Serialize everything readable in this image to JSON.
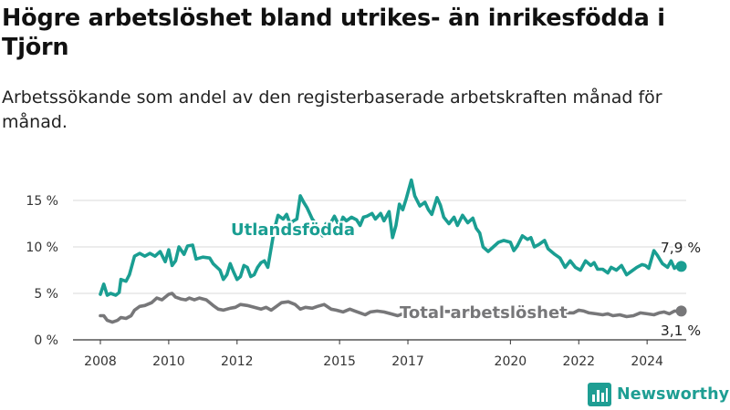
{
  "title": "Högre arbetslöshet bland utrikes- än inrikesfödda i Tjörn",
  "subtitle": "Arbetssökande som andel av den registerbaserade arbetskraften månad för månad.",
  "brand": {
    "name": "Newsworthy",
    "icon": "bar-chart-logo-icon",
    "color": "#1e9e93"
  },
  "colors": {
    "foreign": "#1a9e92",
    "total": "#777779",
    "grid": "#d9d9d9",
    "axis": "#333333"
  },
  "chart_data": {
    "type": "line",
    "ylim": [
      0,
      17.5
    ],
    "xlim": [
      2007.7,
      2025.2
    ],
    "y_ticks": [
      0,
      5,
      10,
      15
    ],
    "y_tick_labels": [
      "0 %",
      "5 %",
      "10 %",
      "15 %"
    ],
    "x_ticks": [
      2008,
      2010,
      2012,
      2015,
      2017,
      2020,
      2022,
      2024
    ],
    "x_tick_labels": [
      "2008",
      "2010",
      "2012",
      "2015",
      "2017",
      "2020",
      "2022",
      "2024"
    ],
    "grid": true,
    "series": [
      {
        "name": "Utlandsfödda",
        "end_label": "7,9 %",
        "points": [
          [
            2008.0,
            4.9
          ],
          [
            2008.1,
            6.0
          ],
          [
            2008.2,
            4.8
          ],
          [
            2008.3,
            5.0
          ],
          [
            2008.45,
            4.8
          ],
          [
            2008.55,
            5.1
          ],
          [
            2008.6,
            6.5
          ],
          [
            2008.75,
            6.3
          ],
          [
            2008.85,
            7.0
          ],
          [
            2009.0,
            9.0
          ],
          [
            2009.15,
            9.3
          ],
          [
            2009.3,
            9.0
          ],
          [
            2009.45,
            9.3
          ],
          [
            2009.6,
            9.0
          ],
          [
            2009.75,
            9.5
          ],
          [
            2009.9,
            8.4
          ],
          [
            2010.0,
            9.7
          ],
          [
            2010.1,
            8.0
          ],
          [
            2010.2,
            8.5
          ],
          [
            2010.3,
            10.0
          ],
          [
            2010.45,
            9.2
          ],
          [
            2010.55,
            10.1
          ],
          [
            2010.7,
            10.2
          ],
          [
            2010.8,
            8.7
          ],
          [
            2011.0,
            8.9
          ],
          [
            2011.2,
            8.8
          ],
          [
            2011.3,
            8.2
          ],
          [
            2011.5,
            7.5
          ],
          [
            2011.6,
            6.5
          ],
          [
            2011.7,
            7.0
          ],
          [
            2011.8,
            8.2
          ],
          [
            2011.9,
            7.3
          ],
          [
            2012.0,
            6.5
          ],
          [
            2012.1,
            6.8
          ],
          [
            2012.2,
            8.0
          ],
          [
            2012.3,
            7.8
          ],
          [
            2012.4,
            6.8
          ],
          [
            2012.5,
            7.0
          ],
          [
            2012.6,
            7.8
          ],
          [
            2012.7,
            8.3
          ],
          [
            2012.8,
            8.5
          ],
          [
            2012.9,
            7.8
          ],
          [
            2013.05,
            11.0
          ],
          [
            2013.1,
            12.0
          ],
          [
            2013.2,
            13.4
          ],
          [
            2013.35,
            13.0
          ],
          [
            2013.45,
            13.5
          ],
          [
            2013.55,
            12.5
          ],
          [
            2013.65,
            12.8
          ],
          [
            2013.75,
            13.0
          ],
          [
            2013.85,
            15.5
          ],
          [
            2013.95,
            14.8
          ],
          [
            2014.05,
            14.2
          ],
          [
            2014.2,
            13.0
          ],
          [
            2014.35,
            12.3
          ],
          [
            2014.5,
            11.2
          ],
          [
            2014.6,
            12.5
          ],
          [
            2014.7,
            12.3
          ],
          [
            2014.85,
            13.3
          ],
          [
            2015.0,
            12.2
          ],
          [
            2015.1,
            13.2
          ],
          [
            2015.2,
            12.8
          ],
          [
            2015.35,
            13.2
          ],
          [
            2015.5,
            12.9
          ],
          [
            2015.6,
            12.3
          ],
          [
            2015.7,
            13.2
          ],
          [
            2015.8,
            13.3
          ],
          [
            2015.95,
            13.6
          ],
          [
            2016.05,
            13.0
          ],
          [
            2016.2,
            13.6
          ],
          [
            2016.3,
            12.8
          ],
          [
            2016.45,
            13.8
          ],
          [
            2016.55,
            11.0
          ],
          [
            2016.65,
            12.3
          ],
          [
            2016.75,
            14.6
          ],
          [
            2016.85,
            14.0
          ],
          [
            2016.95,
            15.2
          ],
          [
            2017.1,
            17.2
          ],
          [
            2017.2,
            15.5
          ],
          [
            2017.35,
            14.4
          ],
          [
            2017.5,
            14.8
          ],
          [
            2017.6,
            14.0
          ],
          [
            2017.7,
            13.5
          ],
          [
            2017.85,
            15.3
          ],
          [
            2017.95,
            14.5
          ],
          [
            2018.05,
            13.2
          ],
          [
            2018.2,
            12.5
          ],
          [
            2018.35,
            13.2
          ],
          [
            2018.45,
            12.3
          ],
          [
            2018.6,
            13.4
          ],
          [
            2018.75,
            12.6
          ],
          [
            2018.9,
            13.1
          ],
          [
            2019.0,
            12.0
          ],
          [
            2019.1,
            11.5
          ],
          [
            2019.2,
            10.0
          ],
          [
            2019.35,
            9.5
          ],
          [
            2019.5,
            10.0
          ],
          [
            2019.65,
            10.5
          ],
          [
            2019.8,
            10.7
          ],
          [
            2020.0,
            10.5
          ],
          [
            2020.1,
            9.6
          ],
          [
            2020.2,
            10.1
          ],
          [
            2020.35,
            11.2
          ],
          [
            2020.5,
            10.8
          ],
          [
            2020.6,
            11.0
          ],
          [
            2020.7,
            10.0
          ],
          [
            2020.85,
            10.3
          ],
          [
            2021.0,
            10.7
          ],
          [
            2021.1,
            9.8
          ],
          [
            2021.2,
            9.5
          ],
          [
            2021.3,
            9.2
          ],
          [
            2021.45,
            8.8
          ],
          [
            2021.6,
            7.8
          ],
          [
            2021.75,
            8.5
          ],
          [
            2021.9,
            7.8
          ],
          [
            2022.05,
            7.5
          ],
          [
            2022.2,
            8.5
          ],
          [
            2022.35,
            8.0
          ],
          [
            2022.45,
            8.3
          ],
          [
            2022.55,
            7.6
          ],
          [
            2022.7,
            7.6
          ],
          [
            2022.85,
            7.2
          ],
          [
            2022.95,
            7.8
          ],
          [
            2023.1,
            7.5
          ],
          [
            2023.25,
            8.0
          ],
          [
            2023.4,
            7.0
          ],
          [
            2023.55,
            7.4
          ],
          [
            2023.7,
            7.8
          ],
          [
            2023.85,
            8.1
          ],
          [
            2023.95,
            8.0
          ],
          [
            2024.05,
            7.7
          ],
          [
            2024.2,
            9.6
          ],
          [
            2024.3,
            9.1
          ],
          [
            2024.45,
            8.2
          ],
          [
            2024.6,
            7.8
          ],
          [
            2024.7,
            8.5
          ],
          [
            2024.8,
            7.7
          ],
          [
            2024.9,
            8.0
          ],
          [
            2025.0,
            7.9
          ]
        ]
      },
      {
        "name": "Total arbetslöshet",
        "end_label": "3,1 %",
        "points": [
          [
            2008.0,
            2.6
          ],
          [
            2008.1,
            2.6
          ],
          [
            2008.2,
            2.1
          ],
          [
            2008.35,
            1.9
          ],
          [
            2008.5,
            2.1
          ],
          [
            2008.6,
            2.4
          ],
          [
            2008.75,
            2.3
          ],
          [
            2008.9,
            2.6
          ],
          [
            2009.0,
            3.2
          ],
          [
            2009.15,
            3.6
          ],
          [
            2009.3,
            3.7
          ],
          [
            2009.5,
            4.0
          ],
          [
            2009.65,
            4.5
          ],
          [
            2009.8,
            4.3
          ],
          [
            2010.0,
            4.9
          ],
          [
            2010.1,
            5.0
          ],
          [
            2010.2,
            4.6
          ],
          [
            2010.35,
            4.4
          ],
          [
            2010.5,
            4.3
          ],
          [
            2010.6,
            4.5
          ],
          [
            2010.75,
            4.3
          ],
          [
            2010.9,
            4.5
          ],
          [
            2011.1,
            4.3
          ],
          [
            2011.3,
            3.7
          ],
          [
            2011.45,
            3.3
          ],
          [
            2011.6,
            3.2
          ],
          [
            2011.8,
            3.4
          ],
          [
            2011.95,
            3.5
          ],
          [
            2012.1,
            3.8
          ],
          [
            2012.3,
            3.7
          ],
          [
            2012.5,
            3.5
          ],
          [
            2012.7,
            3.3
          ],
          [
            2012.85,
            3.5
          ],
          [
            2013.0,
            3.2
          ],
          [
            2013.15,
            3.6
          ],
          [
            2013.3,
            4.0
          ],
          [
            2013.5,
            4.1
          ],
          [
            2013.7,
            3.8
          ],
          [
            2013.85,
            3.3
          ],
          [
            2014.0,
            3.5
          ],
          [
            2014.2,
            3.4
          ],
          [
            2014.35,
            3.6
          ],
          [
            2014.55,
            3.8
          ],
          [
            2014.75,
            3.3
          ],
          [
            2014.9,
            3.2
          ],
          [
            2015.1,
            3.0
          ],
          [
            2015.3,
            3.3
          ],
          [
            2015.45,
            3.1
          ],
          [
            2015.6,
            2.9
          ],
          [
            2015.75,
            2.7
          ],
          [
            2015.9,
            3.0
          ],
          [
            2016.1,
            3.1
          ],
          [
            2016.3,
            3.0
          ],
          [
            2016.5,
            2.8
          ],
          [
            2016.7,
            2.6
          ],
          [
            2016.85,
            2.8
          ],
          [
            2017.0,
            3.1
          ],
          [
            2021.85,
            2.9
          ],
          [
            2022.0,
            3.2
          ],
          [
            2022.15,
            3.1
          ],
          [
            2022.3,
            2.9
          ],
          [
            2022.5,
            2.8
          ],
          [
            2022.7,
            2.7
          ],
          [
            2022.85,
            2.8
          ],
          [
            2023.0,
            2.6
          ],
          [
            2023.2,
            2.7
          ],
          [
            2023.4,
            2.5
          ],
          [
            2023.6,
            2.6
          ],
          [
            2023.8,
            2.9
          ],
          [
            2024.0,
            2.8
          ],
          [
            2024.2,
            2.7
          ],
          [
            2024.35,
            2.9
          ],
          [
            2024.5,
            3.0
          ],
          [
            2024.65,
            2.8
          ],
          [
            2024.8,
            3.1
          ],
          [
            2025.0,
            3.1
          ]
        ]
      }
    ]
  }
}
